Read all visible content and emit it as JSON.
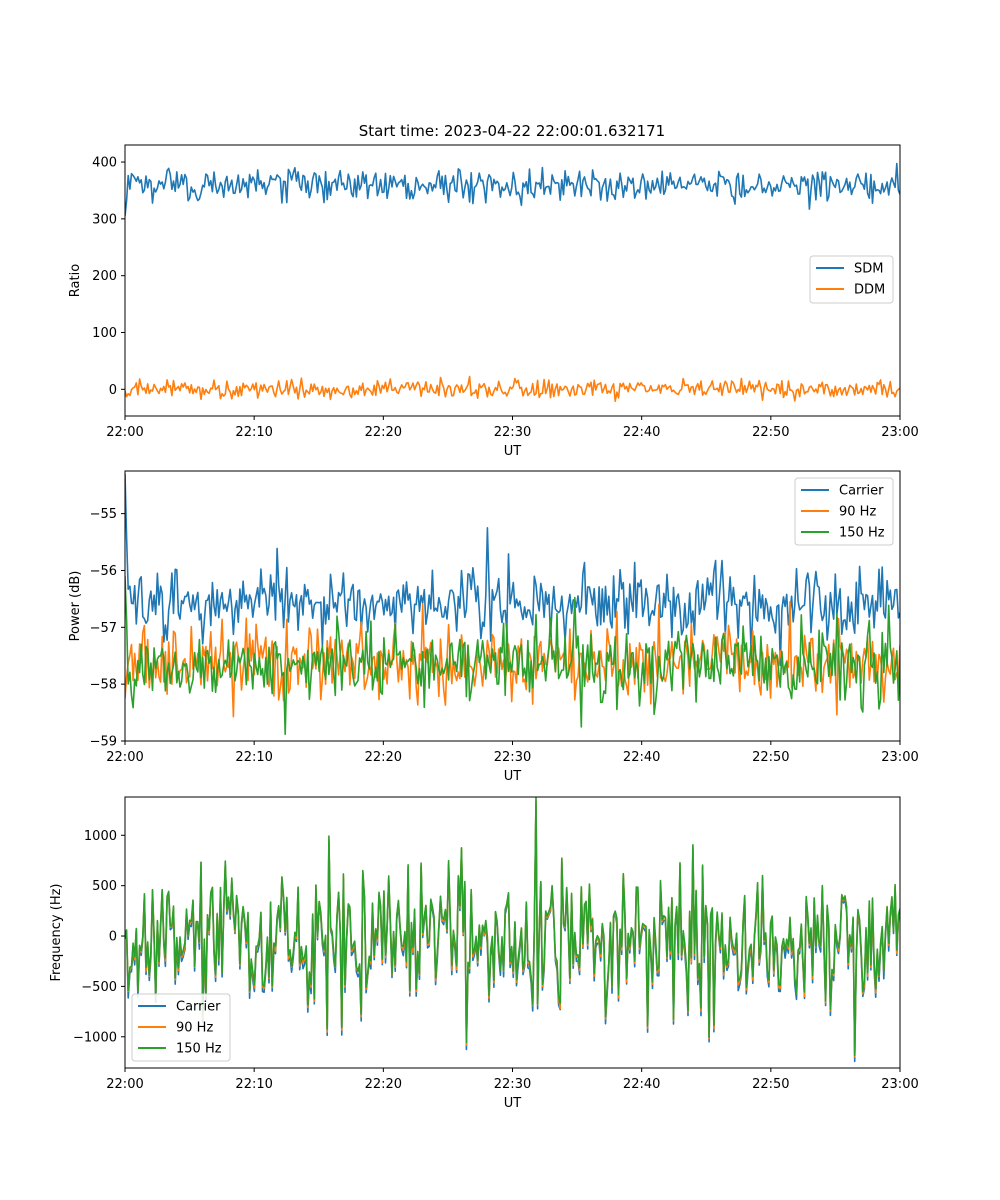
{
  "figure": {
    "title": "Start time: 2023-04-22 22:00:01.632171"
  },
  "colors": {
    "blue": "#1f77b4",
    "orange": "#ff7f0e",
    "green": "#2ca02c"
  },
  "chart_data": [
    {
      "type": "line",
      "title": "Start time: 2023-04-22 22:00:01.632171",
      "xlabel": "UT",
      "ylabel": "Ratio",
      "xlim": [
        "22:00",
        "23:00"
      ],
      "ylim": [
        -47,
        430
      ],
      "xticks": [
        "22:00",
        "22:10",
        "22:20",
        "22:30",
        "22:40",
        "22:50",
        "23:00"
      ],
      "yticks": [
        0,
        100,
        200,
        300,
        400
      ],
      "grid": false,
      "legend": "center-right",
      "series": [
        {
          "name": "SDM",
          "color": "#1f77b4",
          "baseline": 360,
          "noise": 14,
          "start": 305
        },
        {
          "name": "DDM",
          "color": "#ff7f0e",
          "baseline": 0,
          "noise": 8
        }
      ]
    },
    {
      "type": "line",
      "title": "",
      "xlabel": "UT",
      "ylabel": "Power (dB)",
      "xlim": [
        "22:00",
        "23:00"
      ],
      "ylim": [
        -59.0,
        -54.25
      ],
      "xticks": [
        "22:00",
        "22:10",
        "22:20",
        "22:30",
        "22:40",
        "22:50",
        "23:00"
      ],
      "yticks": [
        -55,
        -56,
        -57,
        -58,
        -59
      ],
      "grid": false,
      "legend": "top-right",
      "series": [
        {
          "name": "Carrier",
          "color": "#1f77b4",
          "baseline": -56.55,
          "noise": 0.28,
          "start": -54.3
        },
        {
          "name": "90 Hz",
          "color": "#ff7f0e",
          "baseline": -57.6,
          "noise": 0.32
        },
        {
          "name": "150 Hz",
          "color": "#2ca02c",
          "baseline": -57.65,
          "noise": 0.33,
          "start": -56.1
        }
      ]
    },
    {
      "type": "line",
      "title": "",
      "xlabel": "UT",
      "ylabel": "Frequency (Hz)",
      "xlim": [
        "22:00",
        "23:00"
      ],
      "ylim": [
        -1310,
        1380
      ],
      "xticks": [
        "22:00",
        "22:10",
        "22:20",
        "22:30",
        "22:40",
        "22:50",
        "23:00"
      ],
      "yticks": [
        1000,
        500,
        0,
        -500,
        -1000
      ],
      "grid": false,
      "legend": "bottom-left",
      "series": [
        {
          "name": "Carrier",
          "color": "#1f77b4",
          "offset": -40
        },
        {
          "name": "90 Hz",
          "color": "#ff7f0e",
          "offset": -15
        },
        {
          "name": "150 Hz",
          "color": "#2ca02c",
          "offset": 0
        }
      ]
    }
  ]
}
